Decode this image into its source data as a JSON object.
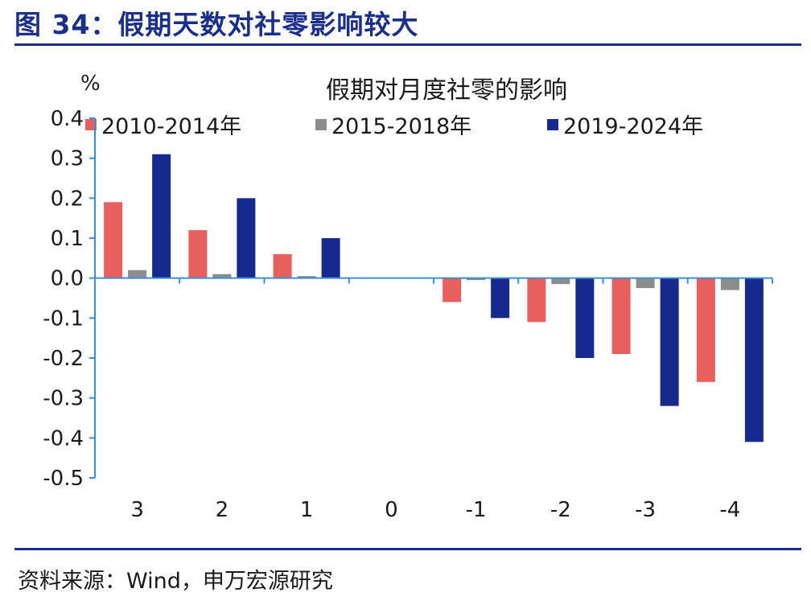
{
  "figure": {
    "title": "图 34：假期天数对社零影响较大",
    "source": "资料来源：Wind，申万宏源研究",
    "accent_color": "#1a2f8c"
  },
  "chart_data": {
    "type": "bar",
    "title": "假期对月度社零的影响",
    "ylabel": "%",
    "xlabel": "",
    "categories": [
      "3",
      "2",
      "1",
      "0",
      "-1",
      "-2",
      "-3",
      "-4"
    ],
    "ylim": [
      -0.5,
      0.4
    ],
    "yticks": [
      "0.4",
      "0.3",
      "0.2",
      "0.1",
      "0.0",
      "-0.1",
      "-0.2",
      "-0.3",
      "-0.4",
      "-0.5"
    ],
    "ytick_values": [
      0.4,
      0.3,
      0.2,
      0.1,
      0.0,
      -0.1,
      -0.2,
      -0.3,
      -0.4,
      -0.5
    ],
    "grid": false,
    "legend_position": "top",
    "series": [
      {
        "name": "2010-2014年",
        "color": "#e8605e",
        "values": [
          0.19,
          0.12,
          0.06,
          0.0,
          -0.06,
          -0.11,
          -0.19,
          -0.26
        ]
      },
      {
        "name": "2015-2018年",
        "color": "#8c8c8c",
        "values": [
          0.02,
          0.01,
          0.005,
          0.0,
          -0.005,
          -0.015,
          -0.025,
          -0.03
        ]
      },
      {
        "name": "2019-2024年",
        "color": "#152a8c",
        "values": [
          0.31,
          0.2,
          0.1,
          0.0,
          -0.1,
          -0.2,
          -0.32,
          -0.41
        ]
      }
    ]
  }
}
